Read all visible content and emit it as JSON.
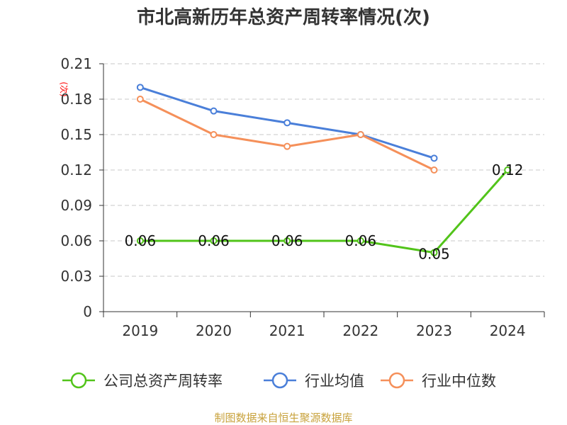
{
  "chart_data": {
    "type": "line",
    "title": "市北高新历年总资产周转率情况(次)",
    "ylabel": "(次)",
    "xlabel": "",
    "categories": [
      "2019",
      "2020",
      "2021",
      "2022",
      "2023",
      "2024"
    ],
    "ylim": [
      0,
      0.21
    ],
    "yticks": [
      "0",
      "0.03",
      "0.06",
      "0.09",
      "0.12",
      "0.15",
      "0.18",
      "0.21"
    ],
    "grid": true,
    "legend_position": "bottom",
    "series": [
      {
        "name": "公司总资产周转率",
        "color": "#52c41a",
        "values": [
          0.06,
          0.06,
          0.06,
          0.06,
          0.05,
          0.12
        ],
        "labels": [
          "0.06",
          "0.06",
          "0.06",
          "0.06",
          "0.05",
          "0.12"
        ]
      },
      {
        "name": "行业均值",
        "color": "#4a7fd9",
        "values": [
          0.19,
          0.17,
          0.16,
          0.15,
          0.13,
          null
        ]
      },
      {
        "name": "行业中位数",
        "color": "#f5905a",
        "values": [
          0.18,
          0.15,
          0.14,
          0.15,
          0.12,
          null
        ]
      }
    ]
  },
  "source": "制图数据来自恒生聚源数据库"
}
